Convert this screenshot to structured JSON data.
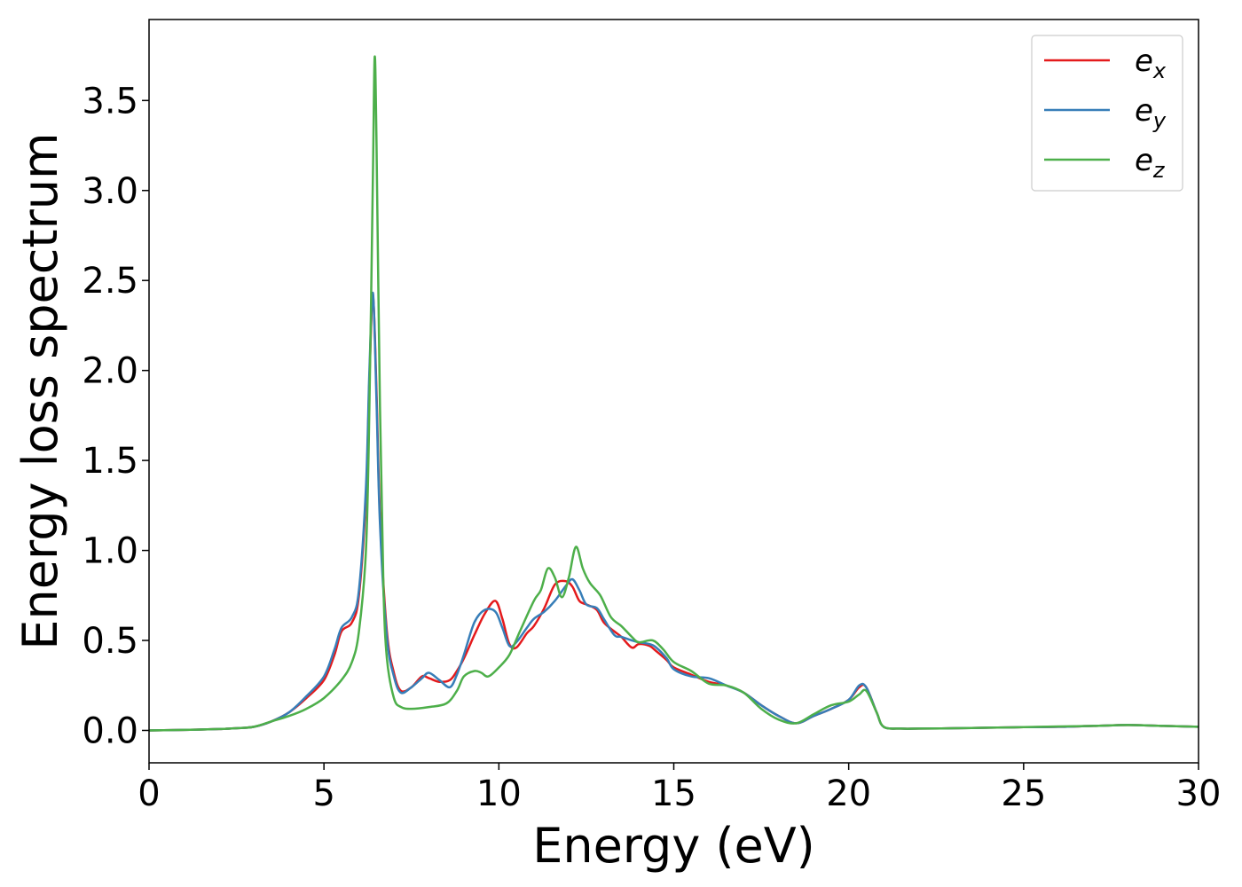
{
  "chart_data": {
    "type": "line",
    "title": "",
    "xlabel": "Energy (eV)",
    "ylabel": "Energy loss spectrum",
    "xlim": [
      0,
      30
    ],
    "ylim": [
      -0.18,
      3.95
    ],
    "xticks": [
      0,
      5,
      10,
      15,
      20,
      25,
      30
    ],
    "xtick_labels": [
      "0",
      "5",
      "10",
      "15",
      "20",
      "25",
      "30"
    ],
    "yticks": [
      0.0,
      0.5,
      1.0,
      1.5,
      2.0,
      2.5,
      3.0,
      3.5
    ],
    "ytick_labels": [
      "0.0",
      "0.5",
      "1.0",
      "1.5",
      "2.0",
      "2.5",
      "3.0",
      "3.5"
    ],
    "grid": false,
    "legend": "top-right",
    "series": [
      {
        "name": "e_x",
        "label_base": "e",
        "label_sub": "x",
        "color": "#e41a1c",
        "x": [
          0,
          1,
          2,
          2.5,
          3,
          3.5,
          4,
          4.5,
          5,
          5.3,
          5.5,
          5.8,
          6,
          6.2,
          6.3,
          6.4,
          6.5,
          6.6,
          6.8,
          7.0,
          7.2,
          7.5,
          7.8,
          8.0,
          8.3,
          8.6,
          8.8,
          9.0,
          9.3,
          9.6,
          9.9,
          10.1,
          10.3,
          10.5,
          10.8,
          11.0,
          11.3,
          11.6,
          11.9,
          12.1,
          12.3,
          12.5,
          12.8,
          13.0,
          13.3,
          13.5,
          13.8,
          14.0,
          14.3,
          14.5,
          14.8,
          15.0,
          15.5,
          16.0,
          16.5,
          17.0,
          17.5,
          18.0,
          18.5,
          19.0,
          19.5,
          20.0,
          20.3,
          20.5,
          20.8,
          21.0,
          21.5,
          22,
          23,
          24,
          25,
          26,
          27,
          28,
          29,
          30
        ],
        "y": [
          0.0,
          0.003,
          0.008,
          0.012,
          0.02,
          0.05,
          0.1,
          0.18,
          0.28,
          0.42,
          0.55,
          0.6,
          0.75,
          1.3,
          1.95,
          2.42,
          1.9,
          1.2,
          0.55,
          0.32,
          0.22,
          0.24,
          0.3,
          0.29,
          0.27,
          0.28,
          0.33,
          0.4,
          0.53,
          0.65,
          0.72,
          0.62,
          0.48,
          0.46,
          0.54,
          0.58,
          0.68,
          0.81,
          0.83,
          0.8,
          0.72,
          0.7,
          0.67,
          0.6,
          0.55,
          0.52,
          0.46,
          0.48,
          0.47,
          0.44,
          0.39,
          0.35,
          0.31,
          0.27,
          0.25,
          0.21,
          0.14,
          0.08,
          0.04,
          0.08,
          0.12,
          0.17,
          0.24,
          0.24,
          0.1,
          0.02,
          0.01,
          0.01,
          0.012,
          0.015,
          0.018,
          0.02,
          0.025,
          0.03,
          0.025,
          0.02
        ]
      },
      {
        "name": "e_y",
        "label_base": "e",
        "label_sub": "y",
        "color": "#377eb8",
        "x": [
          0,
          1,
          2,
          2.5,
          3,
          3.5,
          4,
          4.5,
          5,
          5.3,
          5.5,
          5.8,
          6,
          6.2,
          6.3,
          6.4,
          6.5,
          6.6,
          6.8,
          7.0,
          7.2,
          7.5,
          7.8,
          8.0,
          8.3,
          8.6,
          8.8,
          9.0,
          9.3,
          9.6,
          9.9,
          10.1,
          10.3,
          10.5,
          10.8,
          11.0,
          11.3,
          11.6,
          11.9,
          12.1,
          12.3,
          12.5,
          12.8,
          13.0,
          13.3,
          13.5,
          13.8,
          14.0,
          14.3,
          14.5,
          14.8,
          15.0,
          15.5,
          16.0,
          16.5,
          17.0,
          17.5,
          18.0,
          18.5,
          19.0,
          19.5,
          20.0,
          20.3,
          20.5,
          20.8,
          21.0,
          21.5,
          22,
          23,
          24,
          25,
          26,
          27,
          28,
          29,
          30
        ],
        "y": [
          0.0,
          0.003,
          0.008,
          0.012,
          0.02,
          0.05,
          0.1,
          0.19,
          0.3,
          0.45,
          0.57,
          0.63,
          0.78,
          1.35,
          2.0,
          2.43,
          1.85,
          1.15,
          0.52,
          0.3,
          0.21,
          0.24,
          0.29,
          0.32,
          0.28,
          0.24,
          0.31,
          0.42,
          0.6,
          0.67,
          0.66,
          0.57,
          0.47,
          0.49,
          0.57,
          0.62,
          0.66,
          0.72,
          0.8,
          0.84,
          0.78,
          0.7,
          0.68,
          0.62,
          0.53,
          0.52,
          0.5,
          0.49,
          0.48,
          0.46,
          0.4,
          0.34,
          0.3,
          0.29,
          0.25,
          0.21,
          0.14,
          0.08,
          0.04,
          0.08,
          0.12,
          0.17,
          0.25,
          0.24,
          0.1,
          0.02,
          0.01,
          0.01,
          0.012,
          0.015,
          0.018,
          0.02,
          0.025,
          0.03,
          0.025,
          0.02
        ]
      },
      {
        "name": "e_z",
        "label_base": "e",
        "label_sub": "z",
        "color": "#4daf4a",
        "x": [
          0,
          1,
          2,
          2.5,
          3,
          3.5,
          4,
          4.5,
          5,
          5.5,
          5.8,
          6.0,
          6.2,
          6.3,
          6.4,
          6.45,
          6.5,
          6.6,
          6.7,
          6.8,
          7.0,
          7.2,
          7.5,
          8.0,
          8.5,
          8.8,
          9.0,
          9.3,
          9.5,
          9.7,
          10.0,
          10.3,
          10.6,
          11.0,
          11.2,
          11.4,
          11.6,
          11.8,
          12.0,
          12.2,
          12.4,
          12.6,
          12.9,
          13.2,
          13.5,
          13.8,
          14.0,
          14.4,
          14.7,
          15.0,
          15.5,
          16.0,
          16.5,
          17.0,
          17.5,
          18.0,
          18.5,
          19.0,
          19.5,
          20.0,
          20.3,
          20.5,
          20.8,
          21.0,
          21.5,
          22,
          23,
          24,
          25,
          26,
          27,
          28,
          29,
          30
        ],
        "y": [
          0.0,
          0.003,
          0.008,
          0.012,
          0.02,
          0.05,
          0.08,
          0.12,
          0.18,
          0.28,
          0.38,
          0.55,
          1.0,
          1.8,
          3.1,
          3.74,
          3.3,
          1.8,
          0.8,
          0.4,
          0.18,
          0.13,
          0.12,
          0.13,
          0.15,
          0.22,
          0.3,
          0.33,
          0.32,
          0.3,
          0.35,
          0.42,
          0.55,
          0.72,
          0.78,
          0.9,
          0.85,
          0.74,
          0.85,
          1.02,
          0.9,
          0.82,
          0.75,
          0.63,
          0.58,
          0.52,
          0.49,
          0.5,
          0.45,
          0.38,
          0.33,
          0.26,
          0.25,
          0.21,
          0.12,
          0.06,
          0.04,
          0.09,
          0.14,
          0.16,
          0.2,
          0.22,
          0.1,
          0.02,
          0.01,
          0.01,
          0.012,
          0.015,
          0.018,
          0.022,
          0.025,
          0.03,
          0.025,
          0.02
        ]
      }
    ]
  },
  "colors": {
    "axis": "#000000",
    "legend_border": "#cccccc",
    "background": "#ffffff"
  }
}
